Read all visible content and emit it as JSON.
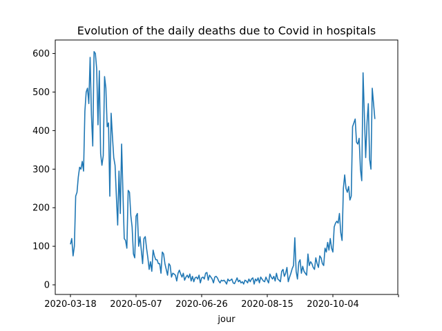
{
  "chart_data": {
    "type": "line",
    "title": "Evolution of the daily deaths due to Covid in hospitals",
    "xlabel": "jour",
    "ylabel": "",
    "x_start": "2020-03-18",
    "x_ticks": [
      "2020-03-18",
      "2020-05-07",
      "2020-06-26",
      "2020-08-15",
      "2020-10-04",
      ""
    ],
    "ylim": [
      -25,
      635
    ],
    "y_ticks": [
      0,
      100,
      200,
      300,
      400,
      500,
      600
    ],
    "grid": false,
    "color": "#1f77b4",
    "series": [
      {
        "name": "",
        "values": [
          105,
          120,
          75,
          100,
          230,
          240,
          280,
          305,
          300,
          320,
          295,
          450,
          500,
          510,
          470,
          590,
          440,
          360,
          605,
          600,
          560,
          415,
          555,
          340,
          310,
          335,
          540,
          510,
          410,
          420,
          230,
          445,
          385,
          330,
          310,
          230,
          155,
          295,
          185,
          365,
          240,
          120,
          115,
          95,
          245,
          240,
          180,
          150,
          80,
          70,
          178,
          185,
          100,
          125,
          90,
          55,
          120,
          125,
          95,
          70,
          40,
          60,
          35,
          90,
          75,
          65,
          65,
          55,
          55,
          30,
          85,
          80,
          55,
          40,
          25,
          55,
          50,
          20,
          30,
          28,
          25,
          10,
          30,
          38,
          28,
          20,
          30,
          12,
          20,
          25,
          18,
          28,
          10,
          22,
          8,
          18,
          20,
          15,
          25,
          5,
          18,
          20,
          15,
          30,
          32,
          12,
          25,
          20,
          15,
          5,
          20,
          22,
          18,
          10,
          5,
          12,
          10,
          12,
          8,
          2,
          15,
          10,
          12,
          15,
          5,
          3,
          10,
          18,
          8,
          12,
          5,
          8,
          2,
          12,
          10,
          5,
          15,
          8,
          15,
          18,
          2,
          15,
          10,
          18,
          5,
          20,
          15,
          10,
          8,
          20,
          12,
          5,
          28,
          20,
          15,
          22,
          10,
          30,
          15,
          12,
          8,
          35,
          40,
          22,
          30,
          45,
          8,
          20,
          30,
          42,
          50,
          122,
          35,
          15,
          58,
          65,
          30,
          48,
          35,
          30,
          25,
          80,
          50,
          60,
          55,
          45,
          40,
          70,
          55,
          45,
          75,
          70,
          55,
          50,
          95,
          85,
          110,
          90,
          120,
          95,
          85,
          150,
          160,
          165,
          160,
          185,
          135,
          115,
          250,
          285,
          250,
          240,
          255,
          220,
          230,
          410,
          420,
          430,
          370,
          365,
          380,
          300,
          270,
          550,
          440,
          330,
          420,
          470,
          325,
          300,
          510,
          470,
          430
        ]
      }
    ]
  }
}
